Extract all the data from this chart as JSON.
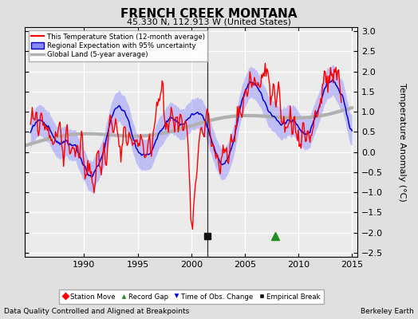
{
  "title": "FRENCH CREEK MONTANA",
  "subtitle": "45.330 N, 112.913 W (United States)",
  "xlabel_left": "Data Quality Controlled and Aligned at Breakpoints",
  "xlabel_right": "Berkeley Earth",
  "ylabel": "Temperature Anomaly (°C)",
  "xlim": [
    1984.5,
    2015.5
  ],
  "ylim": [
    -2.6,
    3.1
  ],
  "yticks": [
    -2.5,
    -2,
    -1.5,
    -1,
    -0.5,
    0,
    0.5,
    1,
    1.5,
    2,
    2.5,
    3
  ],
  "xticks": [
    1990,
    1995,
    2000,
    2005,
    2010,
    2015
  ],
  "bg_color": "#e0e0e0",
  "plot_bg_color": "#ebebeb",
  "grid_color": "#ffffff",
  "station_color": "#ff0000",
  "regional_color": "#0000dd",
  "regional_fill_color": "#8888ff",
  "global_color": "#b0b0b0",
  "seed": 12
}
